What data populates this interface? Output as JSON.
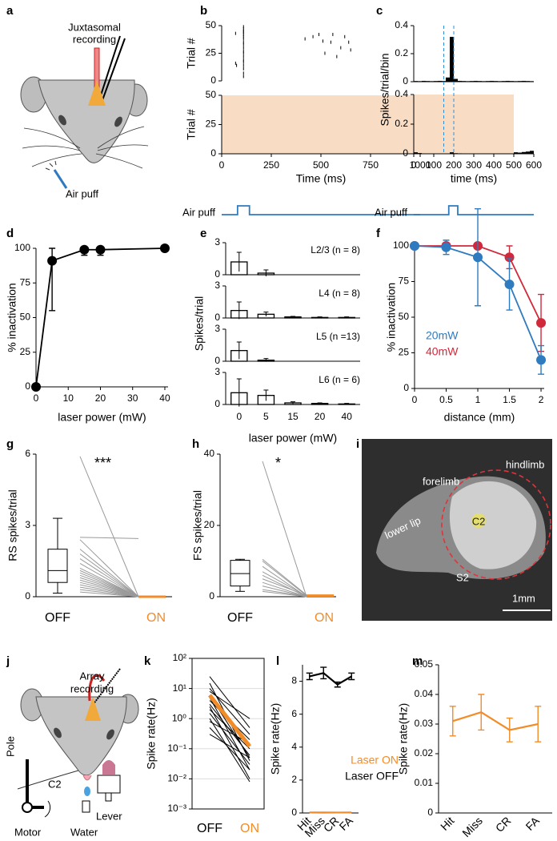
{
  "panel_letters": [
    "a",
    "b",
    "c",
    "d",
    "e",
    "f",
    "g",
    "h",
    "i",
    "j",
    "k",
    "l",
    "m"
  ],
  "diagram_a": {
    "recording_label": [
      "Juxtasomal",
      "recording"
    ],
    "stimulus": "Air puff"
  },
  "image_i": {
    "labels": [
      "hindlimb",
      "forelimb",
      "lower lip",
      "C2",
      "S2"
    ],
    "scale_bar": "1mm"
  },
  "diagram_j": {
    "recording_label": [
      "Array",
      "recording"
    ],
    "labels": [
      "Pole",
      "C2",
      "Lever",
      "Motor",
      "Water"
    ]
  },
  "chart_data": [
    {
      "type": "raster",
      "xlabel": "Time (ms)",
      "ylabel": "Trial #",
      "xlim": [
        0,
        1000
      ],
      "xticks": [
        0,
        250,
        500,
        750,
        1000
      ],
      "ylim": [
        0,
        50
      ],
      "yticks": [
        0,
        25,
        50
      ],
      "laser_color": "#f8dcc4",
      "panels": [
        {
          "spikes": {
            "x": [
              110,
              110,
              110,
              110,
              110,
              110,
              110,
              110,
              110,
              110,
              110,
              110,
              110,
              110,
              110,
              110,
              110,
              110,
              110,
              70,
              70,
              75,
              420,
              460,
              490,
              510,
              550,
              560,
              600,
              620,
              640,
              650,
              520,
              580
            ],
            "y": [
              49,
              47,
              45,
              44,
              42,
              40,
              38,
              35,
              33,
              30,
              27,
              25,
              22,
              19,
              17,
              14,
              11,
              7,
              4,
              43,
              16,
              14,
              38,
              40,
              42,
              36,
              35,
              42,
              30,
              40,
              35,
              28,
              25,
              22
            ]
          }
        },
        {
          "laser": [
            0,
            1000
          ]
        }
      ],
      "stimulus_label": "Air puff",
      "stimulus_window": [
        80,
        140
      ]
    },
    {
      "type": "histogram",
      "xlabel": "time (ms)",
      "ylabel": "Spikes/trial/bin",
      "xlim": [
        0,
        600
      ],
      "xticks": [
        0,
        100,
        200,
        300,
        400,
        500,
        600
      ],
      "ylim": [
        0,
        0.4
      ],
      "yticks": [
        0,
        0.2,
        0.4
      ],
      "laser_color": "#f8dcc4",
      "dash_color": "#2f8fd8",
      "bins": [
        0,
        20,
        40,
        60,
        80,
        100,
        120,
        140,
        160,
        180,
        200,
        220,
        240,
        260,
        280,
        300,
        320,
        340,
        360,
        380,
        400,
        420,
        440,
        460,
        480,
        500,
        520,
        540,
        560,
        580,
        600
      ],
      "dashed_lines": [
        150,
        200
      ],
      "panels": [
        {
          "values": [
            0.005,
            0.004,
            0.006,
            0.005,
            0.004,
            0.005,
            0.006,
            0.005,
            0.03,
            0.32,
            0.02,
            0.006,
            0.005,
            0.004,
            0.005,
            0.006,
            0.005,
            0.004,
            0.005,
            0.006,
            0.005,
            0.004,
            0.005,
            0.006,
            0.005,
            0.004,
            0.005,
            0.006,
            0.005,
            0.004
          ]
        },
        {
          "laser": [
            0,
            500
          ],
          "values": [
            0.01,
            0.005,
            0,
            0,
            0,
            0,
            0,
            0,
            0.002,
            0.01,
            0.004,
            0.003,
            0,
            0,
            0,
            0,
            0,
            0,
            0,
            0,
            0,
            0,
            0,
            0,
            0,
            0.01,
            0.008,
            0.012,
            0.015,
            0.02
          ]
        }
      ],
      "stimulus_label": "Air puff",
      "stimulus_window": [
        175,
        220
      ]
    },
    {
      "type": "line",
      "xlabel": "laser power (mW)",
      "ylabel": "% inactivation",
      "xlim": [
        0,
        41
      ],
      "xticks": [
        0,
        10,
        20,
        30,
        40
      ],
      "ylim": [
        0,
        100
      ],
      "yticks": [
        0,
        25,
        50,
        75,
        100
      ],
      "markers": true,
      "color": "#000000",
      "x": [
        0,
        5,
        15,
        20,
        40
      ],
      "values": [
        0,
        91,
        99,
        99,
        100
      ],
      "error_low": [
        0,
        36,
        4,
        4,
        0
      ],
      "error_high": [
        0,
        9,
        1,
        1,
        0
      ]
    },
    {
      "type": "bar",
      "xlabel": "laser power (mW)",
      "ylabel": "Spikes/trial",
      "categories": [
        "0",
        "5",
        "15",
        "20",
        "40"
      ],
      "ylim": [
        0,
        3
      ],
      "yticks": [
        0,
        3
      ],
      "panels": [
        {
          "label": "L2/3 (n = 8)",
          "values": [
            1.2,
            0.15,
            0,
            0,
            0
          ],
          "errors": [
            0.9,
            0.3,
            0,
            0,
            0
          ]
        },
        {
          "label": "L4 (n = 8)",
          "values": [
            0.7,
            0.35,
            0.1,
            0.05,
            0.05
          ],
          "errors": [
            0.8,
            0.2,
            0.05,
            0.05,
            0.05
          ]
        },
        {
          "label": "L5 (n =13)",
          "values": [
            1.0,
            0.1,
            0,
            0,
            0
          ],
          "errors": [
            0.8,
            0.15,
            0,
            0,
            0
          ]
        },
        {
          "label": "L6 (n = 6)",
          "values": [
            1.1,
            0.85,
            0.15,
            0.1,
            0.05
          ],
          "errors": [
            1.3,
            0.5,
            0.1,
            0.05,
            0.05
          ]
        }
      ]
    },
    {
      "type": "line",
      "xlabel": "distance (mm)",
      "ylabel": "% inactivation",
      "x": [
        0,
        0.5,
        1,
        1.5,
        2
      ],
      "xlim": [
        0,
        2.05
      ],
      "xticks": [
        0,
        0.5,
        1,
        1.5,
        2
      ],
      "ylim": [
        0,
        100
      ],
      "yticks": [
        0,
        25,
        50,
        75,
        100
      ],
      "markers": true,
      "legend": "lower left",
      "series": [
        {
          "name": "40mW",
          "color": "#d0293b",
          "values": [
            100,
            100,
            100,
            92,
            46
          ],
          "errors": [
            0,
            0,
            0,
            8,
            20
          ]
        },
        {
          "name": "20mW",
          "color": "#2f7bbf",
          "values": [
            100,
            99,
            92,
            73,
            20
          ],
          "errors": [
            0,
            5,
            34,
            18,
            10
          ]
        }
      ]
    },
    {
      "type": "paired",
      "ylabel": "RS spikes/trial",
      "categories": [
        "OFF",
        "ON"
      ],
      "category_colors": [
        "#000000",
        "#f28c28"
      ],
      "ylim": [
        0,
        6
      ],
      "yticks": [
        0,
        3,
        6
      ],
      "annotation": "***",
      "line_color": "#9a9a9a",
      "box": {
        "min": 0.15,
        "q1": 0.6,
        "median": 1.1,
        "q3": 2.0,
        "max": 3.3
      },
      "off": [
        5.9,
        2.5,
        2.4,
        2.0,
        1.8,
        1.6,
        1.4,
        1.2,
        1.1,
        1.0,
        0.9,
        0.8,
        0.7,
        0.6,
        0.5,
        0.4,
        0.3,
        0.2
      ],
      "on": [
        0,
        2.45,
        0,
        0,
        0,
        0,
        0,
        0,
        0,
        0,
        0,
        0,
        0,
        0,
        0,
        0,
        0,
        0
      ],
      "on_median": 0
    },
    {
      "type": "paired",
      "ylabel": "FS spikes/trial",
      "categories": [
        "OFF",
        "ON"
      ],
      "category_colors": [
        "#000000",
        "#f28c28"
      ],
      "ylim": [
        0,
        40
      ],
      "yticks": [
        0,
        20,
        40
      ],
      "annotation": "*",
      "line_color": "#9a9a9a",
      "box": {
        "min": 1.5,
        "q1": 3,
        "median": 6.5,
        "q3": 10.2,
        "max": 10.5
      },
      "off": [
        38,
        10.5,
        10,
        8.5,
        7,
        6,
        5,
        4,
        3,
        2,
        1.5
      ],
      "on": [
        0,
        0.5,
        0.3,
        0,
        0.2,
        0,
        0.4,
        0,
        0,
        0.1,
        0
      ],
      "on_median": 0.3
    },
    {
      "type": "paired_log",
      "ylabel": "Spike rate(Hz)",
      "categories": [
        "OFF",
        "ON"
      ],
      "category_colors": [
        "#000000",
        "#f28c28"
      ],
      "log_scale": true,
      "grid": true,
      "ylim": [
        0.001,
        100
      ],
      "yticks": [
        {
          "value": 0.001,
          "label": "10⁻³"
        },
        {
          "value": 0.01,
          "label": "10⁻²"
        },
        {
          "value": 0.1,
          "label": "10⁻¹"
        },
        {
          "value": 1,
          "label": "10⁰"
        },
        {
          "value": 10,
          "label": "10¹"
        },
        {
          "value": 100,
          "label": "10²"
        }
      ],
      "off": [
        25,
        15,
        10,
        8,
        6,
        5,
        4,
        3,
        2.5,
        2,
        1.5,
        1,
        0.8,
        0.5,
        0.3
      ],
      "on": [
        0.5,
        0.04,
        0.3,
        1.0,
        0.05,
        0.02,
        0.2,
        0.06,
        0.01,
        0.1,
        0.03,
        0.008,
        0.15,
        0.02,
        0.05
      ],
      "mean": [
        6,
        0.12
      ],
      "mean_color": "#f28c28"
    },
    {
      "type": "line",
      "ylabel": "Spike rate(Hz)",
      "categories": [
        "Hit",
        "Miss",
        "CR",
        "FA"
      ],
      "ylim": [
        0,
        9
      ],
      "yticks": [
        0,
        2,
        4,
        6,
        8
      ],
      "legend": "lower right",
      "series": [
        {
          "name": "Laser OFF",
          "color": "#000000",
          "values": [
            8.3,
            8.5,
            7.8,
            8.3
          ],
          "errors": [
            0.2,
            0.35,
            0.15,
            0.2
          ]
        },
        {
          "name": "Laser ON",
          "color": "#f28c28",
          "values": [
            0.031,
            0.034,
            0.028,
            0.03
          ]
        }
      ]
    },
    {
      "type": "line",
      "ylabel": "Spike rate(Hz)",
      "categories": [
        "Hit",
        "Miss",
        "CR",
        "FA"
      ],
      "ylim": [
        0,
        0.05
      ],
      "yticks": [
        0,
        0.01,
        0.02,
        0.03,
        0.04,
        0.05
      ],
      "series": [
        {
          "color": "#f28c28",
          "values": [
            0.031,
            0.034,
            0.028,
            0.03
          ],
          "errors": [
            0.005,
            0.006,
            0.004,
            0.006
          ]
        }
      ]
    }
  ]
}
